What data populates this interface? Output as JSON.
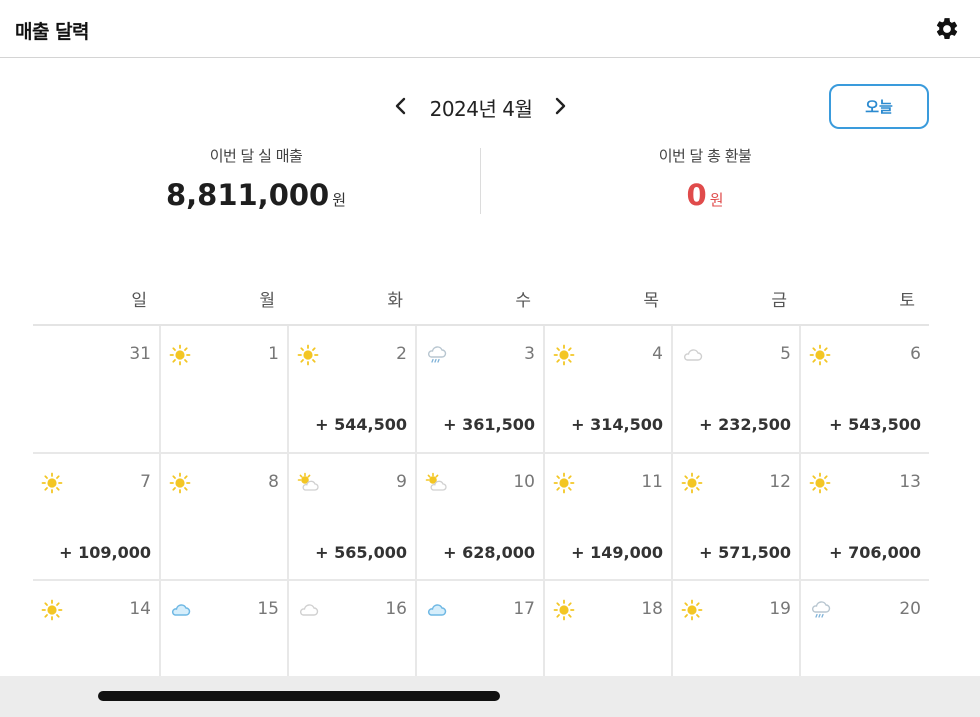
{
  "app": {
    "title": "매출 달력",
    "settings_icon": "gear-icon"
  },
  "nav": {
    "month_label": "2024년 4월",
    "prev_icon": "chevron-left-icon",
    "next_icon": "chevron-right-icon",
    "today_label": "오늘"
  },
  "summary": {
    "sales_label": "이번 달 실 매출",
    "sales_value": "8,811,000",
    "sales_unit": "원",
    "refund_label": "이번 달 총 환불",
    "refund_value": "0",
    "refund_unit": "원"
  },
  "colors": {
    "accent": "#3a9bdc",
    "refund": "#e04b4b",
    "sun": "#f3c624",
    "cloud_blue": "#8ec8ea"
  },
  "weekdays": [
    "일",
    "월",
    "화",
    "수",
    "목",
    "금",
    "토"
  ],
  "days": [
    {
      "day": "31",
      "weather": "",
      "sales": ""
    },
    {
      "day": "1",
      "weather": "sun",
      "sales": ""
    },
    {
      "day": "2",
      "weather": "sun",
      "sales": "+ 544,500"
    },
    {
      "day": "3",
      "weather": "rain",
      "sales": "+ 361,500"
    },
    {
      "day": "4",
      "weather": "sun",
      "sales": "+ 314,500"
    },
    {
      "day": "5",
      "weather": "cloud",
      "sales": "+ 232,500"
    },
    {
      "day": "6",
      "weather": "sun",
      "sales": "+ 543,500"
    },
    {
      "day": "7",
      "weather": "sun",
      "sales": "+ 109,000"
    },
    {
      "day": "8",
      "weather": "sun",
      "sales": ""
    },
    {
      "day": "9",
      "weather": "partly",
      "sales": "+ 565,000"
    },
    {
      "day": "10",
      "weather": "partly",
      "sales": "+ 628,000"
    },
    {
      "day": "11",
      "weather": "sun",
      "sales": "+ 149,000"
    },
    {
      "day": "12",
      "weather": "sun",
      "sales": "+ 571,500"
    },
    {
      "day": "13",
      "weather": "sun",
      "sales": "+ 706,000"
    },
    {
      "day": "14",
      "weather": "sun",
      "sales": ""
    },
    {
      "day": "15",
      "weather": "cloud-blue",
      "sales": ""
    },
    {
      "day": "16",
      "weather": "cloud",
      "sales": ""
    },
    {
      "day": "17",
      "weather": "cloud-blue",
      "sales": ""
    },
    {
      "day": "18",
      "weather": "sun",
      "sales": ""
    },
    {
      "day": "19",
      "weather": "sun",
      "sales": ""
    },
    {
      "day": "20",
      "weather": "rain",
      "sales": ""
    }
  ]
}
